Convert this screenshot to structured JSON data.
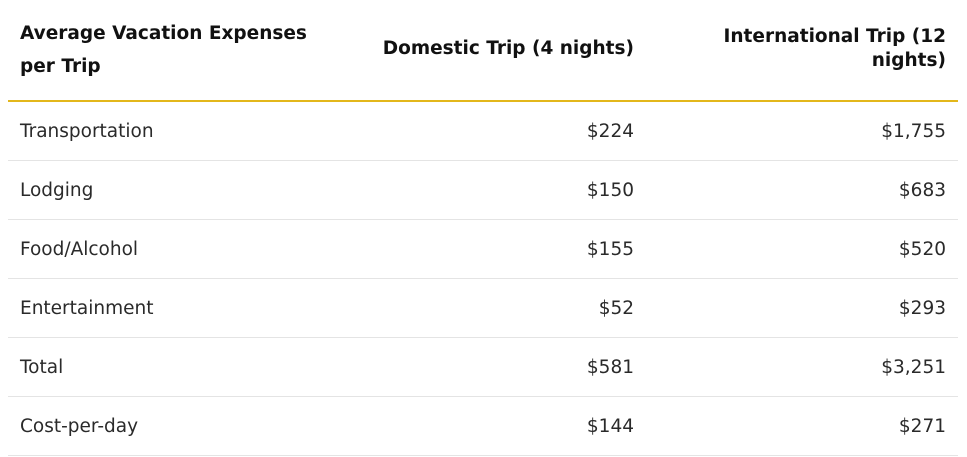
{
  "table": {
    "headers": [
      "Average Vacation Expenses per Trip",
      "Domestic Trip (4 nights)",
      "International Trip (12 nights)"
    ],
    "rows": [
      {
        "label": "Transportation",
        "domestic": "$224",
        "international": "$1,755"
      },
      {
        "label": "Lodging",
        "domestic": "$150",
        "international": "$683"
      },
      {
        "label": "Food/Alcohol",
        "domestic": "$155",
        "international": "$520"
      },
      {
        "label": "Entertainment",
        "domestic": "$52",
        "international": "$293"
      },
      {
        "label": "Total",
        "domestic": "$581",
        "international": "$3,251"
      },
      {
        "label": "Cost-per-day",
        "domestic": "$144",
        "international": "$271"
      }
    ]
  },
  "colors": {
    "header_rule": "#e3b71b",
    "row_rule": "#e4e4e4"
  }
}
